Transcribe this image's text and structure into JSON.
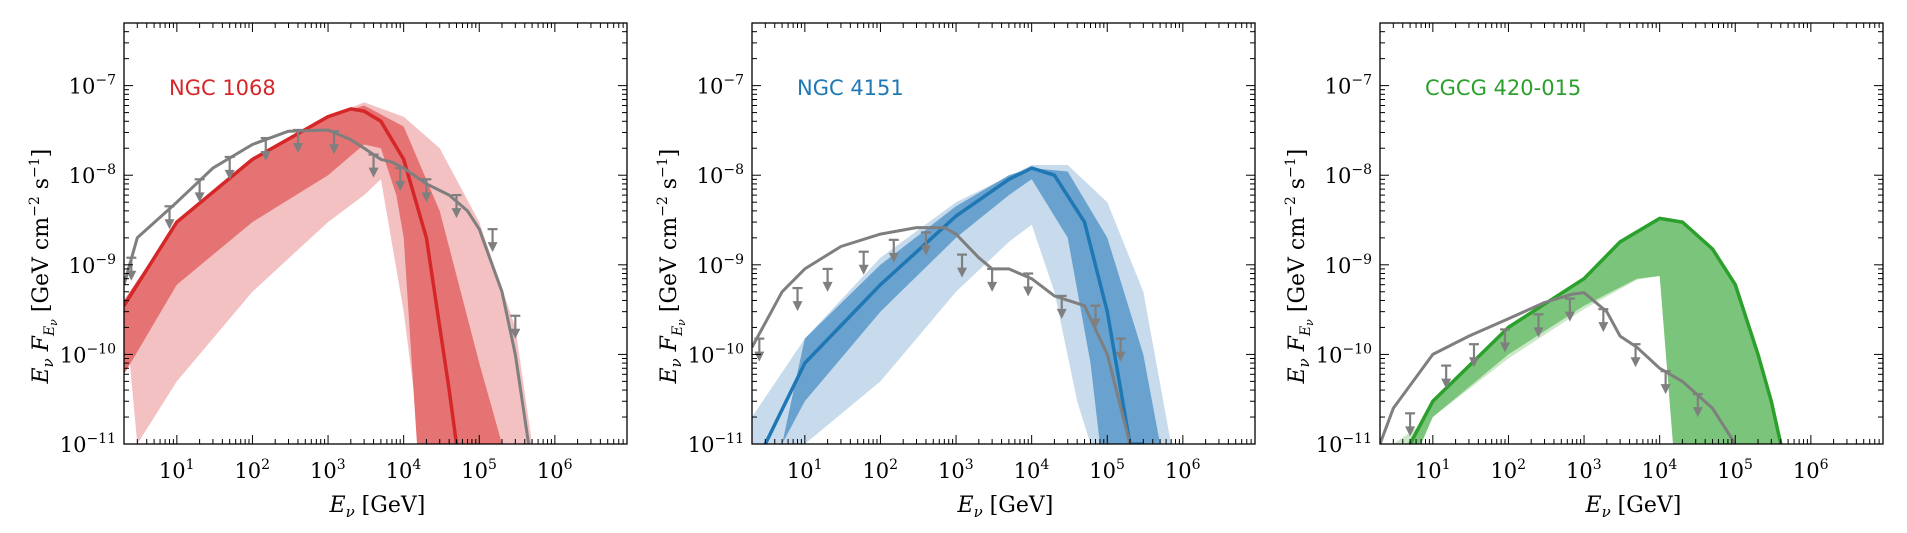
{
  "chart_data": [
    {
      "type": "area",
      "source": "NGC 1068",
      "color": "#d62728",
      "band_outer_color": "#f4c1c2",
      "band_inner_color": "#e57373",
      "xscale": "log",
      "yscale": "log",
      "xlim": [
        2,
        9000000
      ],
      "ylim": [
        1e-11,
        5e-07
      ],
      "xlabel": "E_ν [GeV]",
      "ylabel": "E_ν F_{E_ν} [GeV cm^{-2} s^{-1}]",
      "label_position": "top-left",
      "xticks": [
        {
          "base": "10",
          "exp": "1"
        },
        {
          "base": "10",
          "exp": "2"
        },
        {
          "base": "10",
          "exp": "3"
        },
        {
          "base": "10",
          "exp": "4"
        },
        {
          "base": "10",
          "exp": "5"
        },
        {
          "base": "10",
          "exp": "6"
        }
      ],
      "yticks": [
        {
          "base": "10",
          "exp": "−11"
        },
        {
          "base": "10",
          "exp": "−10"
        },
        {
          "base": "10",
          "exp": "−9"
        },
        {
          "base": "10",
          "exp": "−8"
        },
        {
          "base": "10",
          "exp": "−7"
        }
      ],
      "best_fit": {
        "x": [
          2,
          10,
          100,
          1000,
          2000,
          3000,
          5000,
          10000,
          20000,
          40000,
          50000
        ],
        "y": [
          3.5e-10,
          3e-09,
          1.5e-08,
          4.5e-08,
          5.5e-08,
          5.2e-08,
          4e-08,
          1.5e-08,
          2e-09,
          4e-11,
          1e-11
        ]
      },
      "band_68_upper": {
        "x": [
          2,
          10,
          100,
          1000,
          3000,
          10000,
          30000,
          100000,
          200000
        ],
        "y": [
          4e-10,
          3e-09,
          1.5e-08,
          4.5e-08,
          6e-08,
          3.5e-08,
          4e-09,
          8e-11,
          1e-11
        ]
      },
      "band_68_lower": {
        "x": [
          2,
          10,
          100,
          1000,
          3000,
          5000,
          8000,
          10000,
          15000
        ],
        "y": [
          6e-11,
          6e-10,
          3e-09,
          1e-08,
          2.2e-08,
          2e-08,
          6e-09,
          2e-09,
          1e-11
        ]
      },
      "band_95_upper": {
        "x": [
          2,
          10,
          100,
          1000,
          3000,
          10000,
          30000,
          100000,
          300000,
          500000
        ],
        "y": [
          4e-10,
          3e-09,
          1.5e-08,
          4.5e-08,
          6.5e-08,
          4.5e-08,
          2e-08,
          3e-09,
          2e-10,
          1e-11
        ]
      },
      "band_95_lower": {
        "x": [
          3,
          10,
          100,
          1000,
          3000,
          5000,
          10000,
          15000,
          25000
        ],
        "y": [
          1e-11,
          5e-11,
          5e-10,
          3e-09,
          6e-09,
          9e-09,
          3e-10,
          2e-11,
          1e-11
        ]
      },
      "sensitivity": {
        "x": [
          2,
          3,
          10,
          30,
          100,
          300,
          1000,
          2000,
          3000,
          5000,
          7000,
          10000,
          20000,
          40000,
          70000,
          100000,
          200000,
          300000,
          450000
        ],
        "y": [
          6e-10,
          2e-09,
          5e-09,
          1.2e-08,
          2.2e-08,
          3.1e-08,
          3.2e-08,
          2.5e-08,
          2e-08,
          1.5e-08,
          1.4e-08,
          1.2e-08,
          8e-09,
          6e-09,
          4e-09,
          2.5e-09,
          5e-10,
          1e-10,
          1e-11
        ]
      },
      "upper_limits": {
        "x": [
          2.5,
          8,
          20,
          50,
          150,
          400,
          1200,
          4000,
          9000,
          20000,
          50000,
          150000,
          300000
        ],
        "y": [
          1.2e-09,
          4.5e-09,
          9e-09,
          1.6e-08,
          2.6e-08,
          3.2e-08,
          3.1e-08,
          1.7e-08,
          1.2e-08,
          9e-09,
          6e-09,
          2.5e-09,
          2.7e-10
        ]
      }
    },
    {
      "type": "area",
      "source": "NGC 4151",
      "color": "#1f77b4",
      "band_outer_color": "#c7dbec",
      "band_inner_color": "#6aa2cf",
      "xscale": "log",
      "yscale": "log",
      "xlim": [
        2,
        9000000
      ],
      "ylim": [
        1e-11,
        5e-07
      ],
      "xlabel": "E_ν [GeV]",
      "ylabel": "E_ν F_{E_ν} [GeV cm^{-2} s^{-1}]",
      "label_position": "top-left",
      "xticks": [
        {
          "base": "10",
          "exp": "1"
        },
        {
          "base": "10",
          "exp": "2"
        },
        {
          "base": "10",
          "exp": "3"
        },
        {
          "base": "10",
          "exp": "4"
        },
        {
          "base": "10",
          "exp": "5"
        },
        {
          "base": "10",
          "exp": "6"
        }
      ],
      "yticks": [
        {
          "base": "10",
          "exp": "−11"
        },
        {
          "base": "10",
          "exp": "−10"
        },
        {
          "base": "10",
          "exp": "−9"
        },
        {
          "base": "10",
          "exp": "−8"
        },
        {
          "base": "10",
          "exp": "−7"
        }
      ],
      "best_fit": {
        "x": [
          3,
          10,
          100,
          1000,
          5000,
          10000,
          20000,
          50000,
          100000,
          200000,
          300000
        ],
        "y": [
          1e-11,
          8e-11,
          6e-10,
          3.5e-09,
          9e-09,
          1.2e-08,
          1e-08,
          3e-09,
          3e-10,
          1e-11,
          1e-11
        ]
      },
      "band_68_upper": {
        "x": [
          10,
          100,
          1000,
          5000,
          10000,
          30000,
          100000,
          300000,
          500000
        ],
        "y": [
          1.5e-10,
          1e-09,
          4.5e-09,
          1e-08,
          1.2e-08,
          1.1e-08,
          2e-09,
          1e-10,
          1e-11
        ]
      },
      "band_68_lower": {
        "x": [
          5,
          10,
          100,
          1000,
          5000,
          10000,
          30000,
          60000,
          80000
        ],
        "y": [
          1e-11,
          3e-11,
          3e-10,
          2e-09,
          6e-09,
          9e-09,
          2e-09,
          8e-11,
          1e-11
        ]
      },
      "band_95_upper": {
        "x": [
          2,
          10,
          100,
          1000,
          10000,
          30000,
          100000,
          300000,
          700000
        ],
        "y": [
          2e-11,
          1.5e-10,
          1.2e-09,
          5e-09,
          1.3e-08,
          1.3e-08,
          5e-09,
          5e-10,
          1e-11
        ]
      },
      "band_95_lower": {
        "x": [
          2,
          10,
          100,
          1000,
          5000,
          10000,
          20000,
          40000,
          60000
        ],
        "y": [
          1e-11,
          1e-11,
          5e-11,
          5e-10,
          1.8e-09,
          2.8e-09,
          5e-10,
          3e-11,
          1e-11
        ]
      },
      "sensitivity": {
        "x": [
          2,
          5,
          10,
          30,
          100,
          300,
          700,
          1000,
          2000,
          3000,
          5000,
          10000,
          20000,
          50000,
          100000,
          200000
        ],
        "y": [
          1.2e-10,
          5e-10,
          9e-10,
          1.6e-09,
          2.2e-09,
          2.6e-09,
          2.6e-09,
          2.2e-09,
          1.2e-09,
          9e-10,
          9e-10,
          7e-10,
          4.5e-10,
          3.5e-10,
          1e-10,
          1e-11
        ]
      },
      "upper_limits": {
        "x": [
          2.5,
          8,
          20,
          60,
          150,
          400,
          1200,
          3000,
          9000,
          25000,
          70000,
          150000
        ],
        "y": [
          1.5e-10,
          5.5e-10,
          9e-10,
          1.4e-09,
          1.9e-09,
          2.3e-09,
          1.3e-09,
          9e-10,
          8e-10,
          4.5e-10,
          3.5e-10,
          1.5e-10
        ]
      }
    },
    {
      "type": "area",
      "source": "CGCG 420-015",
      "color": "#2ca02c",
      "band_outer_color": "#cbe8c7",
      "band_inner_color": "#7bc47b",
      "xscale": "log",
      "yscale": "log",
      "xlim": [
        2,
        9000000
      ],
      "ylim": [
        1e-11,
        5e-07
      ],
      "xlabel": "E_ν [GeV]",
      "ylabel": "E_ν F_{E_ν} [GeV cm^{-2} s^{-1}]",
      "label_position": "top-left",
      "xticks": [
        {
          "base": "10",
          "exp": "1"
        },
        {
          "base": "10",
          "exp": "2"
        },
        {
          "base": "10",
          "exp": "3"
        },
        {
          "base": "10",
          "exp": "4"
        },
        {
          "base": "10",
          "exp": "5"
        },
        {
          "base": "10",
          "exp": "6"
        }
      ],
      "yticks": [
        {
          "base": "10",
          "exp": "−11"
        },
        {
          "base": "10",
          "exp": "−10"
        },
        {
          "base": "10",
          "exp": "−9"
        },
        {
          "base": "10",
          "exp": "−8"
        },
        {
          "base": "10",
          "exp": "−7"
        }
      ],
      "best_fit": {
        "x": [
          5,
          10,
          100,
          1000,
          3000,
          10000,
          20000,
          50000,
          100000,
          200000,
          300000,
          400000
        ],
        "y": [
          1e-11,
          3e-11,
          2e-10,
          7e-10,
          1.8e-09,
          3.3e-09,
          3e-09,
          1.5e-09,
          6e-10,
          1e-10,
          3e-11,
          1e-11
        ]
      },
      "band_68_upper": {
        "x": [
          5,
          10,
          100,
          1000,
          3000,
          10000,
          20000,
          50000,
          100000,
          200000,
          300000,
          400000
        ],
        "y": [
          1e-11,
          3e-11,
          2e-10,
          7e-10,
          1.8e-09,
          3.3e-09,
          3e-09,
          1.5e-09,
          6e-10,
          1e-10,
          3e-11,
          1e-11
        ]
      },
      "band_68_lower": {
        "x": [
          7,
          10,
          100,
          1000,
          5000,
          10000,
          15000
        ],
        "y": [
          1e-11,
          2e-11,
          1e-10,
          3.5e-10,
          7e-10,
          7.5e-10,
          1e-11
        ]
      },
      "band_95_upper": {
        "x": [
          5,
          10,
          100,
          1000,
          3000,
          10000,
          20000,
          50000,
          100000,
          200000,
          300000,
          400000
        ],
        "y": [
          1e-11,
          3e-11,
          2e-10,
          7e-10,
          1.8e-09,
          3.3e-09,
          3e-09,
          1.5e-09,
          6e-10,
          1e-10,
          3e-11,
          1e-11
        ]
      },
      "band_95_lower": {
        "x": [
          3,
          10,
          100,
          1000,
          5000,
          10000,
          15000
        ],
        "y": [
          1e-11,
          2e-11,
          9e-11,
          3.2e-10,
          6.8e-10,
          7.5e-10,
          1e-11
        ]
      },
      "sensitivity": {
        "x": [
          2,
          3,
          10,
          30,
          100,
          300,
          700,
          1000,
          2000,
          3000,
          5000,
          10000,
          20000,
          50000,
          100000
        ],
        "y": [
          1e-11,
          2.5e-11,
          1e-10,
          1.6e-10,
          2.5e-10,
          3.8e-10,
          4.7e-10,
          4.9e-10,
          3e-10,
          1.6e-10,
          1.2e-10,
          7e-11,
          5e-11,
          2.5e-11,
          1e-11
        ]
      },
      "upper_limits": {
        "x": [
          5,
          15,
          35,
          90,
          250,
          650,
          1800,
          4800,
          12000,
          32000
        ],
        "y": [
          2.2e-11,
          7.5e-11,
          1.3e-10,
          1.9e-10,
          2.8e-10,
          4.2e-10,
          3.2e-10,
          1.3e-10,
          6.5e-11,
          3.6e-11
        ]
      }
    }
  ]
}
